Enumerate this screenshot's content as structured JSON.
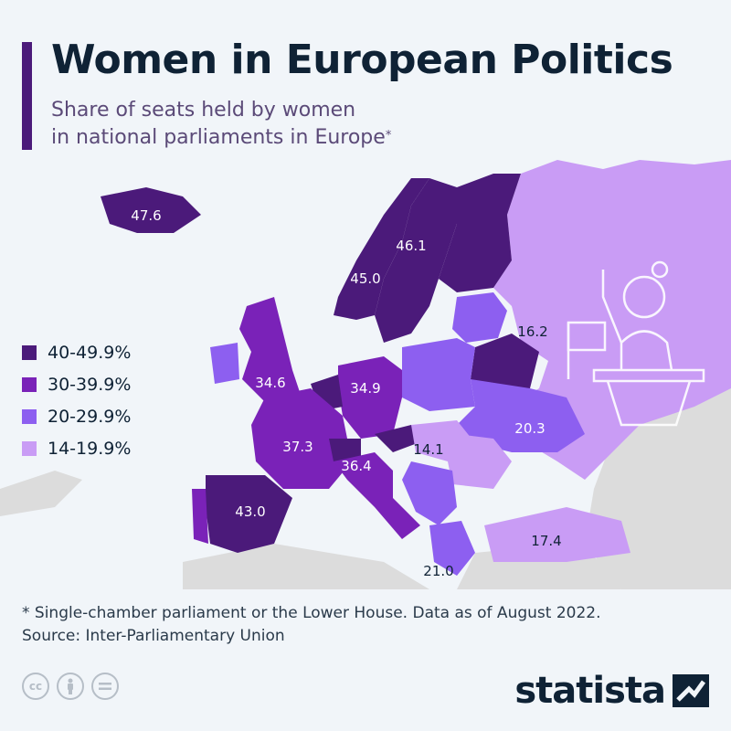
{
  "title": "Women in European Politics",
  "subtitle": {
    "line1": "Share of seats held by women",
    "line2": "in national parliaments in Europe",
    "mark": "*"
  },
  "colors": {
    "bin_40_49": "#4b1a7a",
    "bin_30_39": "#7a22b8",
    "bin_20_29": "#8d5ff0",
    "bin_14_19": "#c99cf5",
    "no_data": "#dcdcdc",
    "brand": "#0f2235"
  },
  "legend": [
    {
      "label": "40-49.9%",
      "color": "#4b1a7a"
    },
    {
      "label": "30-39.9%",
      "color": "#7a22b8"
    },
    {
      "label": "20-29.9%",
      "color": "#8d5ff0"
    },
    {
      "label": "14-19.9%",
      "color": "#c99cf5"
    }
  ],
  "map_labels": {
    "iceland": "47.6",
    "sweden": "46.1",
    "norway": "45.0",
    "russia": "16.2",
    "uk": "34.6",
    "germany": "34.9",
    "ukraine": "20.3",
    "france": "37.3",
    "hungary": "14.1",
    "italy": "36.4",
    "spain": "43.0",
    "turkey": "17.4",
    "greece": "21.0"
  },
  "footnote": {
    "note": "* Single-chamber parliament or the Lower House. Data as of August 2022.",
    "source": "Source: Inter-Parliamentary Union"
  },
  "license_icons": [
    "cc-icon",
    "attribution-icon",
    "no-derivatives-icon"
  ],
  "brand": "statista"
}
